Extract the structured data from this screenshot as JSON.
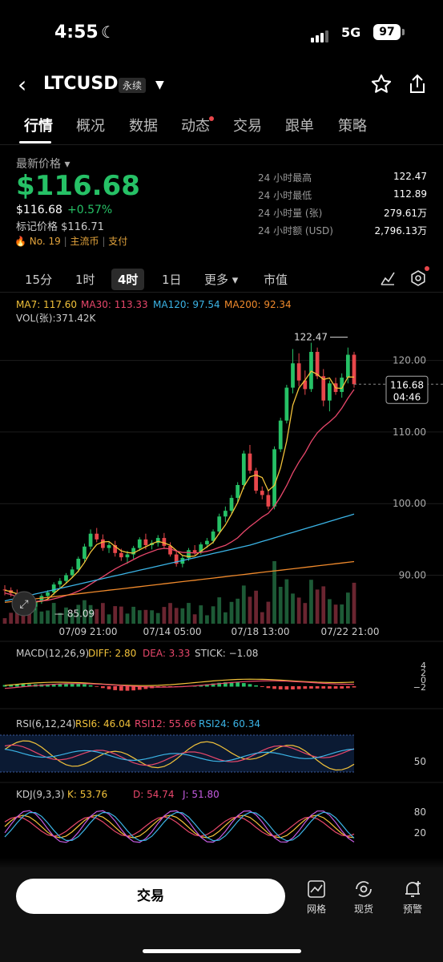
{
  "status_bar": {
    "time": "4:55",
    "network": "5G",
    "battery": "97"
  },
  "header": {
    "symbol": "LTCUSD",
    "badge": "永续"
  },
  "tabs": [
    {
      "label": "行情"
    },
    {
      "label": "概况"
    },
    {
      "label": "数据"
    },
    {
      "label": "动态"
    },
    {
      "label": "交易"
    },
    {
      "label": "跟单"
    },
    {
      "label": "策略"
    }
  ],
  "price_panel": {
    "latest_label": "最新价格",
    "price": "$116.68",
    "sub_price": "$116.68",
    "change": "+0.57%",
    "mark_price": "标记价格 $116.71",
    "rank": "No. 19",
    "tag1": "主流币",
    "tag2": "支付"
  },
  "stats": [
    {
      "label": "24 小时最高",
      "value": "122.47"
    },
    {
      "label": "24 小时最低",
      "value": "112.89"
    },
    {
      "label": "24 小时量 (张)",
      "value": "279.61万"
    },
    {
      "label": "24 小时额 (USD)",
      "value": "2,796.13万"
    }
  ],
  "timeframes": [
    {
      "label": "15分"
    },
    {
      "label": "1时"
    },
    {
      "label": "4时"
    },
    {
      "label": "1日"
    },
    {
      "label": "更多"
    },
    {
      "label": "市值"
    }
  ],
  "active_timeframe": "4时",
  "indicators": {
    "ma7": "MA7: 117.60",
    "ma30": "MA30: 113.33",
    "ma120": "MA120: 97.54",
    "ma200": "MA200: 92.34",
    "vol": "VOL(张):371.42K"
  },
  "chart_data": {
    "type": "candlestick",
    "y_ticks": [
      "120.00",
      "110.00",
      "100.00",
      "90.00"
    ],
    "x_ticks": [
      "07/09 21:00",
      "07/14 05:00",
      "07/18 13:00",
      "07/22 21:00"
    ],
    "high_label": "122.47",
    "low_label": "85.09",
    "current_price": "116.68",
    "countdown": "04:46",
    "ylim": [
      83,
      125
    ],
    "ohlc": [
      [
        88.0,
        88.6,
        87.2,
        87.9
      ],
      [
        87.9,
        88.3,
        87.0,
        87.5
      ],
      [
        87.5,
        88.0,
        86.4,
        86.8
      ],
      [
        86.8,
        87.4,
        86.0,
        86.4
      ],
      [
        86.4,
        86.9,
        85.1,
        85.6
      ],
      [
        85.6,
        86.6,
        85.09,
        86.3
      ],
      [
        86.3,
        87.4,
        86.0,
        87.1
      ],
      [
        87.1,
        87.9,
        86.6,
        87.6
      ],
      [
        87.6,
        89.0,
        87.2,
        88.7
      ],
      [
        88.7,
        89.6,
        88.2,
        89.2
      ],
      [
        89.2,
        90.3,
        88.8,
        90.0
      ],
      [
        90.0,
        91.2,
        89.6,
        90.8
      ],
      [
        90.8,
        92.6,
        90.4,
        92.3
      ],
      [
        92.3,
        94.4,
        91.9,
        94.0
      ],
      [
        94.0,
        96.4,
        93.6,
        95.8
      ],
      [
        95.8,
        96.6,
        94.6,
        95.0
      ],
      [
        95.0,
        95.7,
        93.4,
        93.8
      ],
      [
        93.8,
        94.6,
        93.1,
        94.2
      ],
      [
        94.2,
        94.8,
        92.6,
        93.1
      ],
      [
        93.1,
        93.7,
        92.0,
        92.5
      ],
      [
        92.5,
        93.4,
        91.6,
        92.9
      ],
      [
        92.9,
        94.1,
        92.3,
        93.8
      ],
      [
        93.8,
        95.3,
        93.4,
        95.0
      ],
      [
        95.0,
        95.8,
        93.6,
        94.2
      ],
      [
        94.2,
        94.9,
        93.6,
        94.5
      ],
      [
        94.5,
        95.6,
        94.0,
        95.2
      ],
      [
        95.2,
        95.9,
        93.8,
        94.1
      ],
      [
        94.1,
        94.6,
        92.6,
        92.9
      ],
      [
        92.9,
        93.3,
        91.2,
        91.6
      ],
      [
        91.6,
        92.8,
        91.1,
        92.4
      ],
      [
        92.4,
        93.8,
        92.0,
        93.5
      ],
      [
        93.5,
        94.2,
        92.8,
        93.2
      ],
      [
        93.2,
        94.6,
        92.9,
        94.3
      ],
      [
        94.3,
        95.2,
        93.8,
        94.8
      ],
      [
        94.8,
        96.4,
        94.4,
        96.1
      ],
      [
        96.1,
        98.6,
        95.7,
        98.2
      ],
      [
        98.2,
        99.6,
        97.4,
        99.0
      ],
      [
        99.0,
        101.2,
        98.6,
        100.8
      ],
      [
        100.8,
        103.0,
        100.2,
        102.6
      ],
      [
        102.6,
        107.4,
        102.0,
        107.0
      ],
      [
        107.0,
        108.2,
        104.2,
        104.6
      ],
      [
        104.6,
        105.0,
        101.4,
        101.8
      ],
      [
        101.8,
        102.4,
        100.6,
        101.2
      ],
      [
        101.2,
        101.8,
        99.2,
        99.6
      ],
      [
        99.6,
        108.0,
        99.2,
        107.6
      ],
      [
        107.6,
        112.0,
        107.2,
        111.6
      ],
      [
        111.6,
        116.6,
        111.2,
        116.2
      ],
      [
        116.2,
        121.6,
        115.4,
        119.6
      ],
      [
        119.6,
        121.0,
        116.4,
        117.2
      ],
      [
        117.2,
        118.6,
        115.2,
        116.0
      ],
      [
        116.0,
        122.47,
        115.6,
        121.2
      ],
      [
        121.2,
        121.8,
        117.4,
        117.8
      ],
      [
        117.8,
        118.8,
        113.6,
        114.4
      ],
      [
        114.4,
        117.2,
        112.89,
        116.8
      ],
      [
        116.8,
        117.6,
        115.2,
        115.6
      ],
      [
        115.6,
        118.2,
        114.8,
        117.6
      ],
      [
        117.6,
        121.8,
        116.8,
        120.8
      ],
      [
        120.8,
        121.2,
        116.2,
        116.68
      ]
    ],
    "series": [
      {
        "name": "MA7"
      },
      {
        "name": "MA30"
      },
      {
        "name": "MA120"
      },
      {
        "name": "MA200"
      }
    ]
  },
  "macd": {
    "label": "MACD(12,26,9)",
    "diff": "DIFF: 2.80",
    "dea": "DEA: 3.33",
    "stick": "STICK: −1.08",
    "ticks": [
      "4",
      "2",
      "0",
      "−2"
    ]
  },
  "rsi": {
    "label": "RSI(6,12,24)",
    "rsi6": "RSI6: 46.04",
    "rsi12": "RSI12: 55.66",
    "rsi24": "RSI24: 60.34",
    "tick": "50"
  },
  "kdj": {
    "label": "KDJ(9,3,3)",
    "k": "K: 53.76",
    "d": "D: 54.74",
    "j": "J: 51.80",
    "ticks": [
      "80",
      "20"
    ]
  },
  "bottom_bar": {
    "trade": "交易",
    "grid": "网格",
    "spot": "现货",
    "alert": "预警"
  },
  "colors": {
    "up": "#26c166",
    "down": "#e8474b",
    "ma7": "#f2c23a",
    "ma30": "#e8476b",
    "ma120": "#3bb4e6",
    "ma200": "#f08a2c"
  }
}
